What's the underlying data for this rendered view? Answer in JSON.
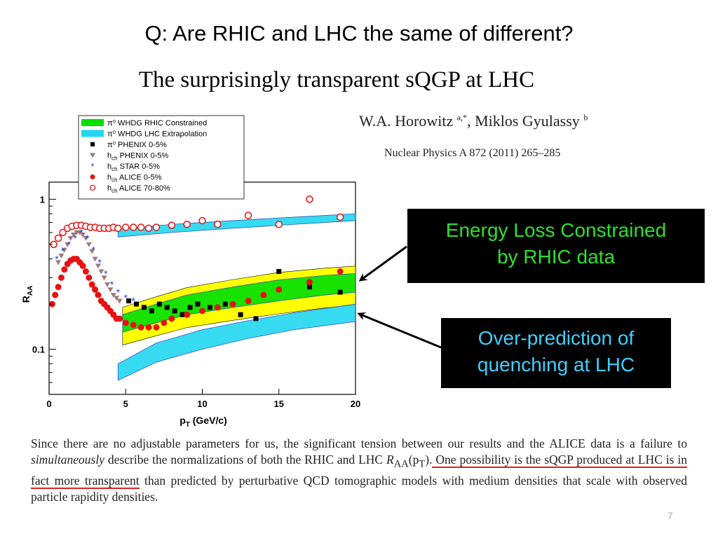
{
  "slide": {
    "title": "Q: Are RHIC and LHC the same of different?",
    "page_number": "7"
  },
  "paper": {
    "title": "The surprisingly transparent sQGP at LHC",
    "authors": "W.A. Horowitz",
    "authors_sup1": "a,*",
    "authors_mid": ", Miklos Gyulassy",
    "authors_sup2": "b",
    "journal": "Nuclear Physics A 872 (2011) 265–285"
  },
  "callouts": {
    "energy_loss": [
      "Energy Loss Constrained",
      "by RHIC data"
    ],
    "over_prediction": [
      "Over-prediction of",
      "quenching at LHC"
    ]
  },
  "caption": {
    "part1": "Since there are no adjustable parameters for us, the significant tension between our results and the ALICE data is a failure to ",
    "emph": "simultaneously",
    "part2": " describe the normalizations of both the RHIC and LHC ",
    "math": "R",
    "math_sub": "AA",
    "math_arg": "(p",
    "math_arg_sub": "T",
    "math_close": ").",
    "underlined": " One possibility is the sQGP produced at LHC is in fact more transparent",
    "part3": " than predicted by perturbative QCD tomographic models with medium densities that scale with observed particle rapidity densities."
  },
  "colors": {
    "rhic_band": "#00e000",
    "lhc_band": "#22d8f0",
    "yellow_band": "#ffff00",
    "callout_green": "#2de02d",
    "callout_cyan": "#3fd0ff",
    "alice_red": "#e81010",
    "underline": "#e02020"
  },
  "chart_data": {
    "type": "scatter",
    "xlabel": "p",
    "xlabel_sub": "T",
    "xlabel_unit": " (GeV/c)",
    "ylabel": "R",
    "ylabel_sub": "AA",
    "xlim": [
      0,
      20
    ],
    "ylim": [
      0.05,
      1.3
    ],
    "y_scale": "log",
    "x_ticks": [
      "0",
      "5",
      "10",
      "15",
      "20"
    ],
    "y_ticks": [
      "0.1",
      "1"
    ],
    "legend_position": "top-left",
    "legend": [
      {
        "pre": "π⁰",
        "label": " WHDG RHIC Constrained",
        "marker": "band-green"
      },
      {
        "pre": "π⁰",
        "label": " WHDG LHC Extrapolation",
        "marker": "band-cyan"
      },
      {
        "pre": "π⁰",
        "label": "  PHENIX 0-5%",
        "marker": "square-black"
      },
      {
        "pre": "h",
        "sub": "ch",
        "label": " PHENIX 0-5%",
        "marker": "triangle-brown"
      },
      {
        "pre": "h",
        "sub": "ch",
        "label": " STAR 0-5%",
        "marker": "star-blue"
      },
      {
        "pre": "h",
        "sub": "ch",
        "label": " ALICE 0-5%",
        "marker": "circle-red"
      },
      {
        "pre": "h",
        "sub": "ch",
        "label": " ALICE 70-80%",
        "marker": "circle-open-red"
      }
    ],
    "bands": [
      {
        "name": "WHDG RHIC Constrained",
        "x": [
          4.8,
          7,
          9,
          12,
          15,
          18,
          20
        ],
        "low": [
          0.13,
          0.15,
          0.17,
          0.19,
          0.21,
          0.23,
          0.24
        ],
        "high": [
          0.17,
          0.2,
          0.23,
          0.26,
          0.29,
          0.31,
          0.32
        ]
      },
      {
        "name": "WHDG LHC Extrapolation",
        "x": [
          4.5,
          7,
          10,
          13,
          16,
          20
        ],
        "low": [
          0.062,
          0.082,
          0.1,
          0.118,
          0.135,
          0.153
        ],
        "high": [
          0.08,
          0.11,
          0.135,
          0.155,
          0.175,
          0.2
        ]
      },
      {
        "name": "LHC Extrapolation 70-80%",
        "x": [
          4.5,
          8,
          12,
          16,
          20
        ],
        "low": [
          0.56,
          0.6,
          0.64,
          0.68,
          0.72
        ],
        "high": [
          0.63,
          0.68,
          0.72,
          0.76,
          0.8
        ]
      }
    ],
    "series": [
      {
        "name": "π⁰ PHENIX 0-5%",
        "x": [
          5.2,
          5.7,
          6.2,
          6.7,
          7.2,
          7.7,
          8.2,
          8.7,
          9.2,
          9.7,
          10.5,
          11.5,
          12.5,
          13.5,
          15,
          17,
          19
        ],
        "y": [
          0.21,
          0.2,
          0.19,
          0.18,
          0.2,
          0.19,
          0.18,
          0.17,
          0.19,
          0.2,
          0.19,
          0.2,
          0.17,
          0.16,
          0.33,
          0.26,
          0.24
        ]
      },
      {
        "name": "h_ch PHENIX 0-5%",
        "x": [
          0.6,
          0.8,
          1.0,
          1.2,
          1.4,
          1.6,
          1.8,
          2.0,
          2.2,
          2.4,
          2.6,
          2.8,
          3.0,
          3.2,
          3.4,
          3.6,
          3.8,
          4.0,
          4.2,
          4.4,
          4.6
        ],
        "y": [
          0.38,
          0.42,
          0.46,
          0.5,
          0.55,
          0.58,
          0.6,
          0.6,
          0.58,
          0.55,
          0.5,
          0.45,
          0.4,
          0.36,
          0.33,
          0.3,
          0.27,
          0.25,
          0.23,
          0.22,
          0.21
        ]
      },
      {
        "name": "h_ch STAR 0-5%",
        "x": [
          0.5,
          0.9,
          1.3,
          1.7,
          2.1,
          2.5,
          2.9,
          3.3,
          3.7,
          4.1,
          4.5,
          5.0,
          5.5
        ],
        "y": [
          0.4,
          0.45,
          0.5,
          0.55,
          0.6,
          0.55,
          0.46,
          0.38,
          0.32,
          0.27,
          0.24,
          0.22,
          0.21
        ]
      },
      {
        "name": "h_ch ALICE 0-5%",
        "x": [
          0.2,
          0.4,
          0.6,
          0.8,
          1.0,
          1.2,
          1.4,
          1.6,
          1.8,
          2.0,
          2.2,
          2.4,
          2.6,
          2.8,
          3.0,
          3.2,
          3.4,
          3.6,
          3.8,
          4.0,
          4.2,
          4.4,
          4.6,
          5.0,
          5.5,
          6.0,
          6.5,
          7.0,
          7.5,
          8.0,
          9.0,
          10.0,
          11.0,
          12.0,
          13.0,
          14.0,
          15.0,
          17.0,
          19.0
        ],
        "y": [
          0.2,
          0.23,
          0.26,
          0.3,
          0.34,
          0.37,
          0.39,
          0.4,
          0.4,
          0.38,
          0.36,
          0.33,
          0.3,
          0.27,
          0.25,
          0.23,
          0.21,
          0.2,
          0.19,
          0.18,
          0.17,
          0.16,
          0.16,
          0.15,
          0.145,
          0.14,
          0.14,
          0.14,
          0.15,
          0.16,
          0.17,
          0.18,
          0.19,
          0.2,
          0.21,
          0.23,
          0.25,
          0.28,
          0.33
        ]
      },
      {
        "name": "h_ch ALICE 70-80%",
        "x": [
          0.3,
          0.6,
          0.9,
          1.2,
          1.5,
          1.8,
          2.1,
          2.4,
          2.7,
          3.0,
          3.3,
          3.6,
          3.9,
          4.2,
          4.5,
          5.0,
          5.5,
          6.0,
          6.5,
          7.0,
          8.0,
          9.0,
          10.0,
          11.0,
          13.0,
          15.0,
          17.0,
          19.0
        ],
        "y": [
          0.5,
          0.55,
          0.6,
          0.64,
          0.66,
          0.67,
          0.67,
          0.66,
          0.65,
          0.65,
          0.64,
          0.64,
          0.64,
          0.65,
          0.64,
          0.65,
          0.65,
          0.65,
          0.64,
          0.65,
          0.67,
          0.68,
          0.72,
          0.68,
          0.78,
          0.68,
          1.0,
          0.76
        ]
      }
    ]
  }
}
